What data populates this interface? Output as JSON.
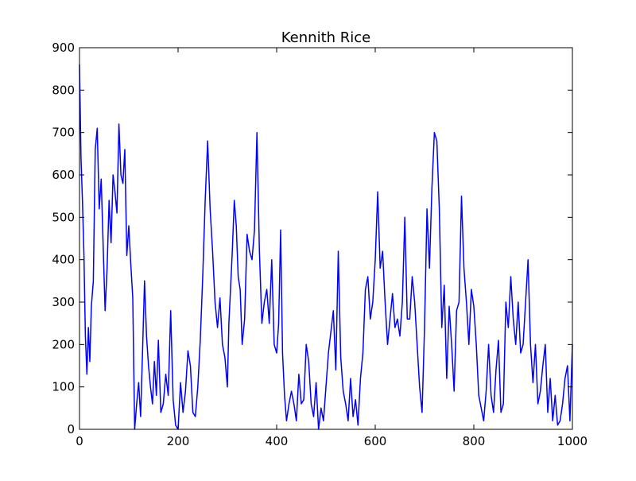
{
  "chart_data": {
    "type": "line",
    "title": "Kennith Rice",
    "xlabel": "",
    "ylabel": "",
    "xlim": [
      0,
      1000
    ],
    "ylim": [
      0,
      900
    ],
    "x_ticks": [
      0,
      200,
      400,
      600,
      800,
      1000
    ],
    "y_ticks": [
      0,
      100,
      200,
      300,
      400,
      500,
      600,
      700,
      800,
      900
    ],
    "grid": false,
    "legend": "none",
    "line_color": "#0000ff",
    "x": [
      0,
      3,
      6,
      9,
      12,
      15,
      18,
      21,
      24,
      28,
      32,
      36,
      40,
      44,
      48,
      52,
      56,
      60,
      64,
      68,
      72,
      76,
      80,
      84,
      88,
      92,
      96,
      100,
      104,
      108,
      112,
      116,
      120,
      124,
      128,
      132,
      136,
      140,
      144,
      148,
      152,
      156,
      160,
      165,
      170,
      175,
      180,
      185,
      190,
      195,
      200,
      205,
      210,
      215,
      220,
      225,
      230,
      235,
      240,
      245,
      250,
      255,
      260,
      265,
      270,
      275,
      280,
      285,
      290,
      295,
      300,
      303,
      306,
      310,
      314,
      318,
      322,
      326,
      330,
      335,
      340,
      345,
      350,
      355,
      360,
      365,
      370,
      375,
      380,
      385,
      390,
      395,
      400,
      404,
      408,
      412,
      416,
      420,
      425,
      430,
      435,
      440,
      445,
      450,
      455,
      460,
      465,
      470,
      475,
      480,
      485,
      490,
      495,
      500,
      505,
      510,
      515,
      520,
      525,
      530,
      535,
      540,
      545,
      550,
      555,
      560,
      565,
      570,
      575,
      580,
      585,
      590,
      595,
      600,
      605,
      610,
      615,
      620,
      625,
      630,
      635,
      640,
      645,
      650,
      655,
      660,
      665,
      670,
      675,
      680,
      685,
      690,
      695,
      700,
      705,
      710,
      715,
      720,
      725,
      730,
      735,
      740,
      745,
      750,
      755,
      760,
      765,
      770,
      775,
      780,
      785,
      790,
      795,
      800,
      805,
      810,
      815,
      820,
      825,
      830,
      835,
      840,
      845,
      850,
      855,
      860,
      865,
      870,
      875,
      880,
      885,
      890,
      895,
      900,
      905,
      910,
      915,
      920,
      925,
      930,
      935,
      940,
      945,
      950,
      955,
      960,
      965,
      970,
      975,
      980,
      985,
      990,
      995,
      1000
    ],
    "y": [
      860,
      640,
      540,
      410,
      220,
      130,
      240,
      160,
      290,
      350,
      660,
      710,
      520,
      590,
      430,
      280,
      380,
      540,
      440,
      600,
      560,
      510,
      720,
      600,
      580,
      660,
      410,
      480,
      390,
      310,
      0,
      60,
      110,
      30,
      190,
      350,
      220,
      150,
      100,
      60,
      160,
      80,
      210,
      40,
      60,
      130,
      80,
      280,
      70,
      10,
      0,
      110,
      40,
      90,
      185,
      150,
      40,
      30,
      100,
      210,
      360,
      540,
      680,
      520,
      420,
      300,
      240,
      310,
      200,
      170,
      100,
      250,
      320,
      420,
      540,
      480,
      360,
      330,
      200,
      260,
      460,
      420,
      400,
      470,
      700,
      420,
      250,
      300,
      330,
      250,
      400,
      200,
      180,
      250,
      470,
      180,
      80,
      20,
      60,
      90,
      60,
      20,
      130,
      60,
      70,
      200,
      160,
      60,
      30,
      110,
      0,
      50,
      20,
      100,
      180,
      230,
      280,
      140,
      420,
      170,
      90,
      60,
      20,
      120,
      30,
      70,
      10,
      120,
      180,
      330,
      360,
      260,
      300,
      400,
      560,
      380,
      420,
      300,
      200,
      260,
      320,
      240,
      260,
      220,
      300,
      500,
      260,
      260,
      360,
      300,
      200,
      100,
      40,
      240,
      520,
      380,
      570,
      700,
      680,
      520,
      240,
      340,
      120,
      290,
      200,
      90,
      280,
      300,
      550,
      380,
      300,
      200,
      330,
      290,
      200,
      80,
      50,
      20,
      90,
      200,
      80,
      40,
      140,
      210,
      40,
      60,
      300,
      240,
      360,
      260,
      200,
      300,
      180,
      200,
      300,
      400,
      200,
      110,
      200,
      60,
      90,
      150,
      200,
      40,
      120,
      20,
      80,
      10,
      20,
      60,
      120,
      150,
      20,
      200
    ]
  }
}
